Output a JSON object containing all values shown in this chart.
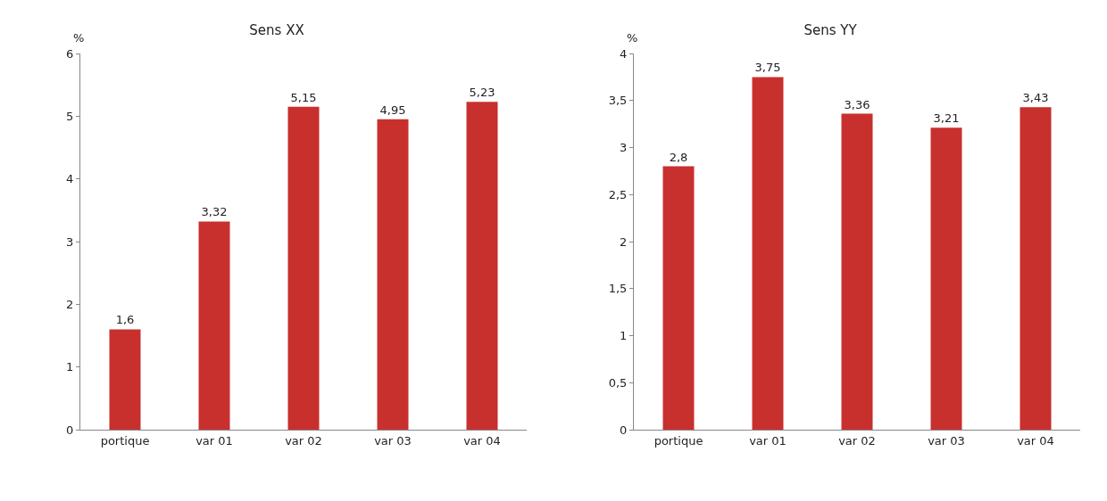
{
  "chart_data": [
    {
      "type": "bar",
      "title": "Sens XX",
      "ylabel": "%",
      "categories": [
        "portique",
        "var 01",
        "var 02",
        "var 03",
        "var 04"
      ],
      "values": [
        1.6,
        3.32,
        5.15,
        4.95,
        5.23
      ],
      "value_labels": [
        "1,6",
        "3,32",
        "5,15",
        "4,95",
        "5,23"
      ],
      "color": "#c8302e",
      "ylim": [
        0,
        6
      ],
      "yticks": [
        0,
        1,
        2,
        3,
        4,
        5,
        6
      ],
      "grid": false
    },
    {
      "type": "bar",
      "title": "Sens YY",
      "ylabel": "%",
      "categories": [
        "portique",
        "var 01",
        "var 02",
        "var 03",
        "var 04"
      ],
      "values": [
        2.8,
        3.75,
        3.36,
        3.21,
        3.43
      ],
      "value_labels": [
        "2,8",
        "3,75",
        "3,36",
        "3,21",
        "3,43"
      ],
      "color": "#c8302e",
      "ylim": [
        0,
        4
      ],
      "yticks": [
        0,
        {
          "value": 0.5,
          "label": "0,5"
        },
        1,
        {
          "value": 1.5,
          "label": "1,5"
        },
        2,
        {
          "value": 2.5,
          "label": "2,5"
        },
        3,
        {
          "value": 3.5,
          "label": "3,5"
        },
        4
      ],
      "grid": false
    }
  ]
}
